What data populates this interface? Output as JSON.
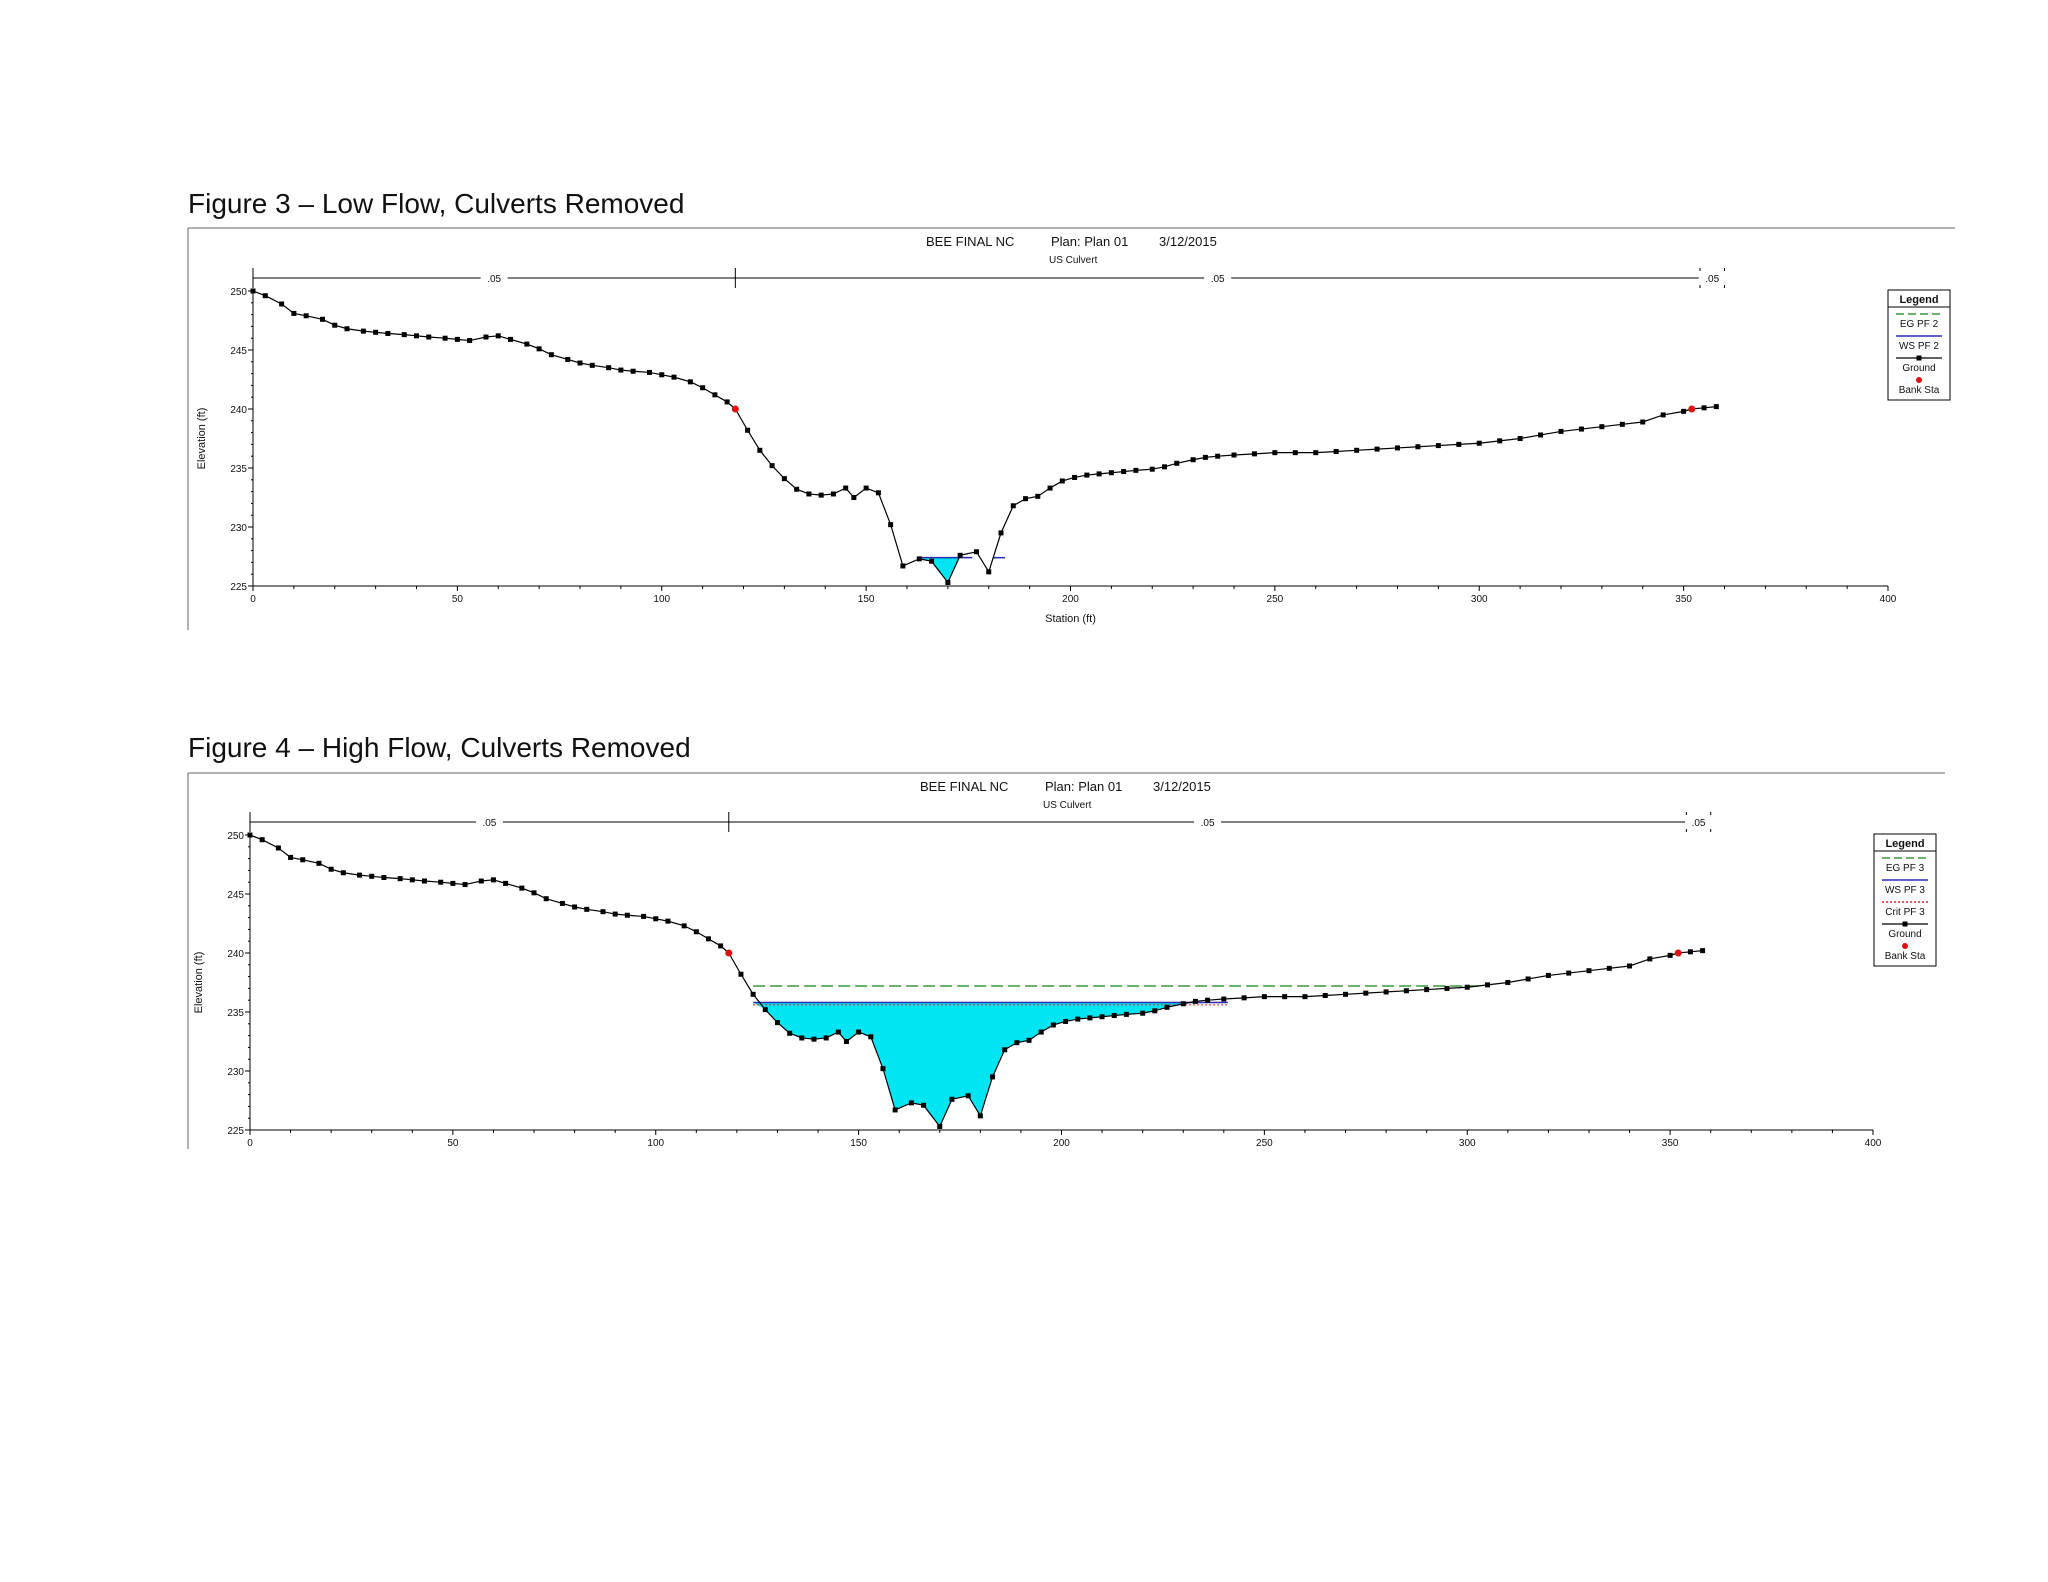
{
  "figures": [
    {
      "caption": "Figure 3 – Low Flow, Culverts Removed",
      "header": {
        "title": "BEE FINAL NC",
        "plan": "Plan: Plan 01",
        "date": "3/12/2015",
        "subtitle": "US Culvert"
      },
      "manning": {
        "left": ".05",
        "channel": ".05",
        "right": ".05"
      },
      "legend": {
        "title": "Legend",
        "items": [
          "EG PF 2",
          "WS PF 2",
          "Ground",
          "Bank Sta"
        ]
      }
    },
    {
      "caption": "Figure 4 – High Flow, Culverts Removed",
      "header": {
        "title": "BEE FINAL NC",
        "plan": "Plan: Plan 01",
        "date": "3/12/2015",
        "subtitle": "US Culvert"
      },
      "manning": {
        "left": ".05",
        "channel": ".05",
        "right": ".05"
      },
      "legend": {
        "title": "Legend",
        "items": [
          "EG PF 3",
          "WS PF 3",
          "Crit PF 3",
          "Ground",
          "Bank Sta"
        ]
      }
    }
  ],
  "colors": {
    "water": "#00e5f2",
    "eg_line": "#3a9a3a",
    "ws_line": "#2b2bb8",
    "crit_line": "#e02020",
    "bank": "#e01010",
    "ground": "#000000"
  },
  "chart_data": [
    {
      "type": "line",
      "title": "BEE FINAL NC",
      "xlabel": "Station (ft)",
      "ylabel": "Elevation (ft)",
      "xlim": [
        0,
        400
      ],
      "ylim": [
        225,
        250
      ],
      "xticks": [
        0,
        50,
        100,
        150,
        200,
        250,
        300,
        350,
        400
      ],
      "yticks": [
        225,
        230,
        235,
        240,
        245,
        250
      ],
      "ground": {
        "x": [
          0,
          3,
          7,
          10,
          13,
          17,
          20,
          23,
          27,
          30,
          33,
          37,
          40,
          43,
          47,
          50,
          53,
          57,
          60,
          63,
          67,
          70,
          73,
          77,
          80,
          83,
          87,
          90,
          93,
          97,
          100,
          103,
          107,
          110,
          113,
          116,
          118,
          121,
          124,
          127,
          130,
          133,
          136,
          139,
          142,
          145,
          147,
          150,
          153,
          156,
          159,
          163,
          166,
          170,
          173,
          177,
          180,
          183,
          186,
          189,
          192,
          195,
          198,
          201,
          204,
          207,
          210,
          213,
          216,
          220,
          223,
          226,
          230,
          233,
          236,
          240,
          245,
          250,
          255,
          260,
          265,
          270,
          275,
          280,
          285,
          290,
          295,
          300,
          305,
          310,
          315,
          320,
          325,
          330,
          335,
          340,
          345,
          350,
          352,
          355,
          358
        ],
        "y": [
          250,
          249.6,
          248.9,
          248.1,
          247.9,
          247.6,
          247.1,
          246.8,
          246.6,
          246.5,
          246.4,
          246.3,
          246.2,
          246.1,
          246,
          245.9,
          245.8,
          246.1,
          246.2,
          245.9,
          245.5,
          245.1,
          244.6,
          244.2,
          243.9,
          243.7,
          243.5,
          243.3,
          243.2,
          243.1,
          242.9,
          242.7,
          242.3,
          241.8,
          241.2,
          240.6,
          240,
          238.2,
          236.5,
          235.2,
          234.1,
          233.2,
          232.8,
          232.7,
          232.8,
          233.3,
          232.5,
          233.3,
          232.9,
          230.2,
          226.7,
          227.3,
          227.1,
          225.3,
          227.6,
          227.9,
          226.2,
          229.5,
          231.8,
          232.4,
          232.6,
          233.3,
          233.9,
          234.2,
          234.4,
          234.5,
          234.6,
          234.7,
          234.8,
          234.9,
          235.1,
          235.4,
          235.7,
          235.9,
          236,
          236.1,
          236.2,
          236.3,
          236.3,
          236.3,
          236.4,
          236.5,
          236.6,
          236.7,
          236.8,
          236.9,
          237,
          237.1,
          237.3,
          237.5,
          237.8,
          238.1,
          238.3,
          238.5,
          238.7,
          238.9,
          239.5,
          239.8,
          240,
          240.1,
          240.2
        ]
      },
      "bank_stations": [
        [
          118,
          240
        ],
        [
          352,
          240
        ]
      ],
      "manning_breaks": [
        0,
        118,
        354,
        360
      ],
      "water_surface": [
        {
          "from": 163,
          "to": 176,
          "elevation": 227.4
        },
        {
          "from": 181,
          "to": 184,
          "elevation": 227.4
        }
      ],
      "legend_position": "right"
    },
    {
      "type": "line",
      "title": "BEE FINAL NC",
      "xlabel": "",
      "ylabel": "Elevation (ft)",
      "xlim": [
        0,
        400
      ],
      "ylim": [
        225,
        250
      ],
      "xticks": [
        0,
        50,
        100,
        150,
        200,
        250,
        300,
        350,
        400
      ],
      "yticks": [
        225,
        230,
        235,
        240,
        245,
        250
      ],
      "ground": {
        "x": [
          0,
          3,
          7,
          10,
          13,
          17,
          20,
          23,
          27,
          30,
          33,
          37,
          40,
          43,
          47,
          50,
          53,
          57,
          60,
          63,
          67,
          70,
          73,
          77,
          80,
          83,
          87,
          90,
          93,
          97,
          100,
          103,
          107,
          110,
          113,
          116,
          118,
          121,
          124,
          127,
          130,
          133,
          136,
          139,
          142,
          145,
          147,
          150,
          153,
          156,
          159,
          163,
          166,
          170,
          173,
          177,
          180,
          183,
          186,
          189,
          192,
          195,
          198,
          201,
          204,
          207,
          210,
          213,
          216,
          220,
          223,
          226,
          230,
          233,
          236,
          240,
          245,
          250,
          255,
          260,
          265,
          270,
          275,
          280,
          285,
          290,
          295,
          300,
          305,
          310,
          315,
          320,
          325,
          330,
          335,
          340,
          345,
          350,
          352,
          355,
          358
        ],
        "y": [
          250,
          249.6,
          248.9,
          248.1,
          247.9,
          247.6,
          247.1,
          246.8,
          246.6,
          246.5,
          246.4,
          246.3,
          246.2,
          246.1,
          246,
          245.9,
          245.8,
          246.1,
          246.2,
          245.9,
          245.5,
          245.1,
          244.6,
          244.2,
          243.9,
          243.7,
          243.5,
          243.3,
          243.2,
          243.1,
          242.9,
          242.7,
          242.3,
          241.8,
          241.2,
          240.6,
          240,
          238.2,
          236.5,
          235.2,
          234.1,
          233.2,
          232.8,
          232.7,
          232.8,
          233.3,
          232.5,
          233.3,
          232.9,
          230.2,
          226.7,
          227.3,
          227.1,
          225.3,
          227.6,
          227.9,
          226.2,
          229.5,
          231.8,
          232.4,
          232.6,
          233.3,
          233.9,
          234.2,
          234.4,
          234.5,
          234.6,
          234.7,
          234.8,
          234.9,
          235.1,
          235.4,
          235.7,
          235.9,
          236,
          236.1,
          236.2,
          236.3,
          236.3,
          236.3,
          236.4,
          236.5,
          236.6,
          236.7,
          236.8,
          236.9,
          237,
          237.1,
          237.3,
          237.5,
          237.8,
          238.1,
          238.3,
          238.5,
          238.7,
          238.9,
          239.5,
          239.8,
          240,
          240.1,
          240.2
        ]
      },
      "bank_stations": [
        [
          118,
          240
        ],
        [
          352,
          240
        ]
      ],
      "manning_breaks": [
        0,
        118,
        354,
        360
      ],
      "water_surface": [
        {
          "from": 124,
          "to": 241,
          "elevation": 235.8
        }
      ],
      "energy_grade": {
        "from": 124,
        "to": 304,
        "elevation": 237.2
      },
      "critical_depth": {
        "from": 124,
        "to": 241,
        "elevation": 235.6
      },
      "legend_position": "right"
    }
  ]
}
